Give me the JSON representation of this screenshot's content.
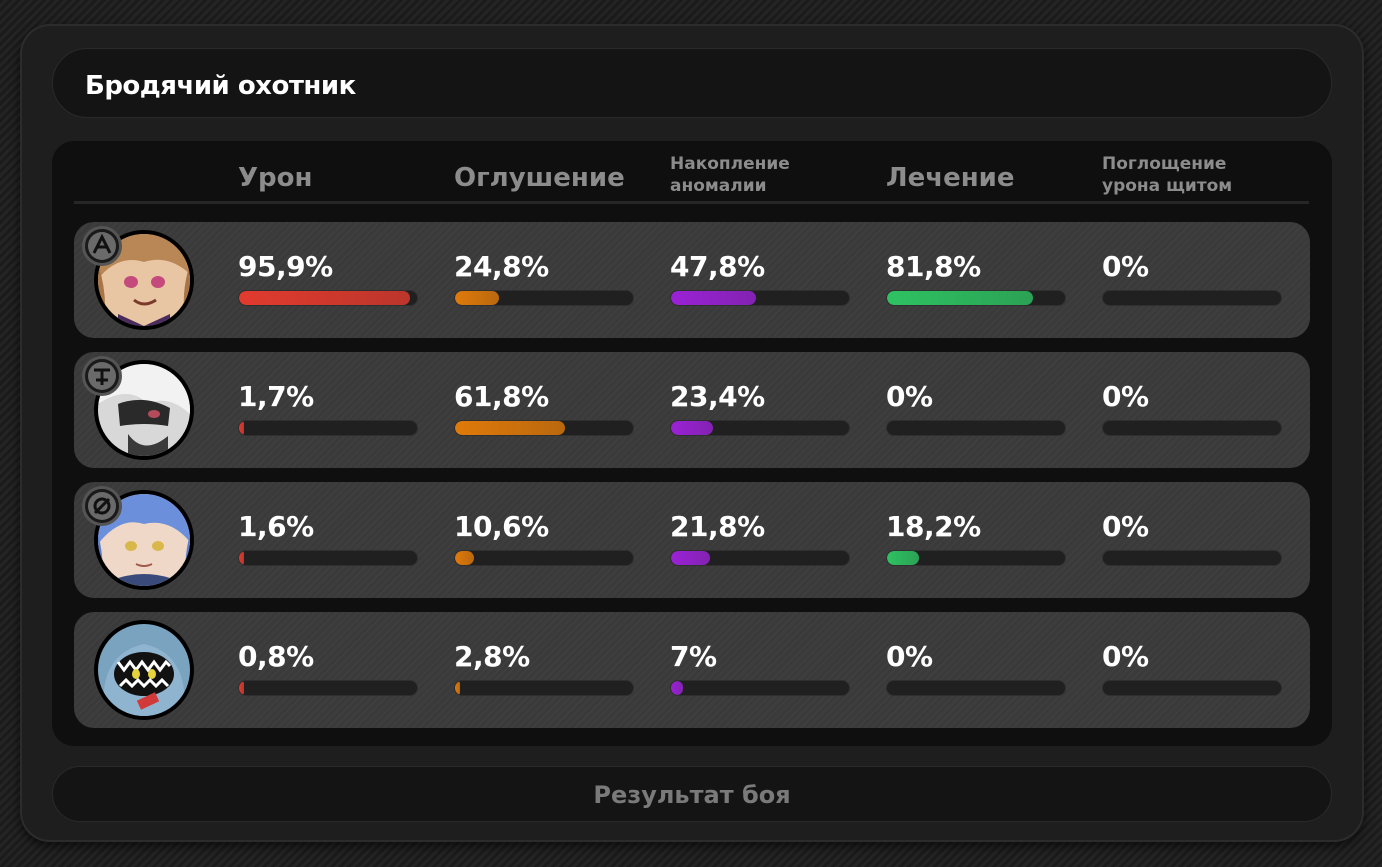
{
  "title": "Бродячий охотник",
  "columns": [
    {
      "label": "Урон"
    },
    {
      "label": "Оглушение"
    },
    {
      "label": "Накопление\nаномалии"
    },
    {
      "label": "Лечение"
    },
    {
      "label": "Поглощение\nурона щитом"
    }
  ],
  "colors": {
    "damage": "#e23b2e",
    "stun": "#e07a0a",
    "anomaly": "#9b22d6",
    "healing": "#2ec262",
    "shield": "#888888"
  },
  "rows": [
    {
      "avatar": "character-1-portrait",
      "badge": "attack-class-icon",
      "values": [
        "95,9%",
        "24,8%",
        "47,8%",
        "81,8%",
        "0%"
      ],
      "fractions": [
        0.959,
        0.248,
        0.478,
        0.818,
        0
      ]
    },
    {
      "avatar": "character-2-portrait",
      "badge": "stun-class-icon",
      "values": [
        "1,7%",
        "61,8%",
        "23,4%",
        "0%",
        "0%"
      ],
      "fractions": [
        0.017,
        0.618,
        0.234,
        0,
        0
      ]
    },
    {
      "avatar": "character-3-portrait",
      "badge": "support-class-icon",
      "values": [
        "1,6%",
        "10,6%",
        "21,8%",
        "18,2%",
        "0%"
      ],
      "fractions": [
        0.016,
        0.106,
        0.218,
        0.182,
        0
      ]
    },
    {
      "avatar": "bangboo-shark-portrait",
      "badge": "",
      "values": [
        "0,8%",
        "2,8%",
        "7%",
        "0%",
        "0%"
      ],
      "fractions": [
        0.008,
        0.028,
        0.07,
        0,
        0
      ]
    }
  ],
  "result_label": "Результат боя"
}
